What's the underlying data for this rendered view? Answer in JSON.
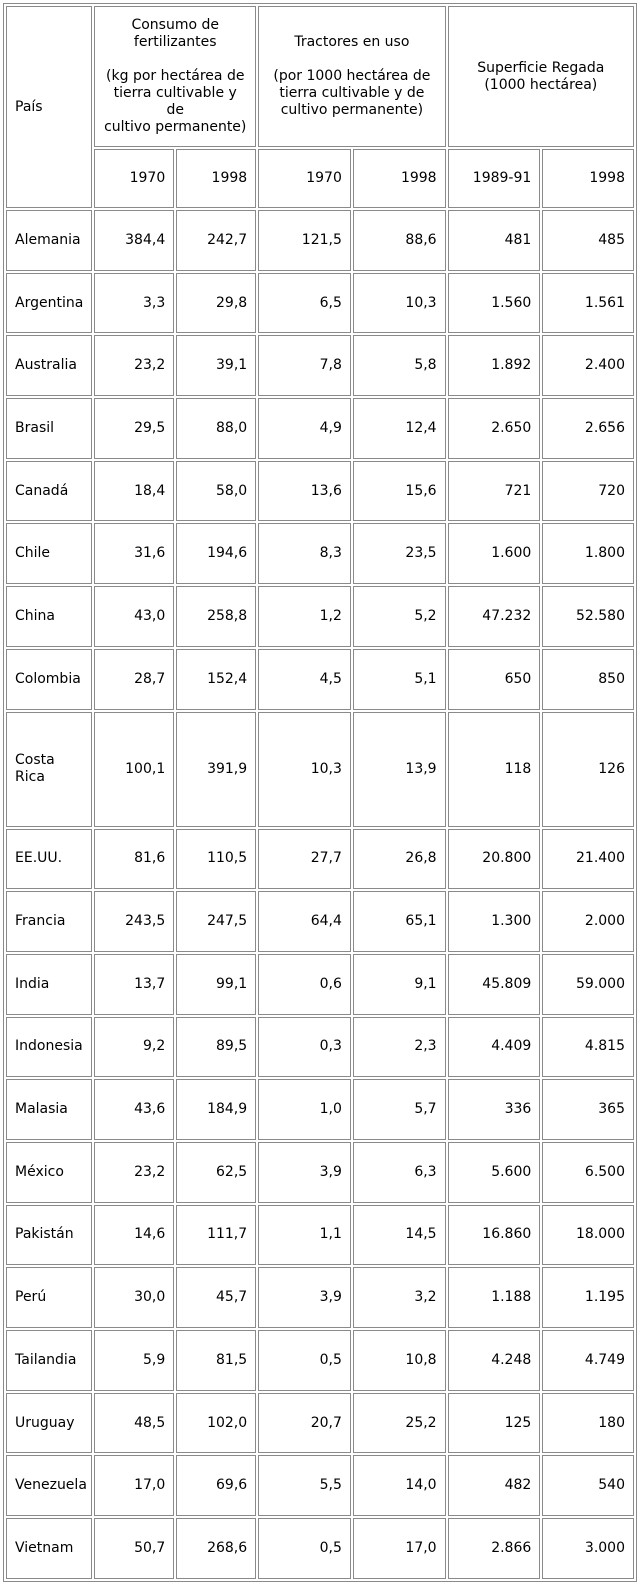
{
  "header": {
    "pais": "País",
    "fertilizer": {
      "line1": "Consumo de",
      "line2": "fertilizantes",
      "line3": "(kg por hectárea de",
      "line4": "tierra cultivable y de",
      "line5": "cultivo permanente)"
    },
    "tractors": {
      "line1": "Tractores en uso",
      "line2": "(por 1000 hectárea de",
      "line3": "tierra cultivable y de",
      "line4": "cultivo permanente)"
    },
    "irrigated": {
      "line1": "Superficie Regada",
      "line2": "(1000 hectárea)"
    },
    "years": [
      "1970",
      "1998",
      "1970",
      "1998",
      "1989-91",
      "1998"
    ]
  },
  "rows": [
    [
      "Alemania",
      "384,4",
      "242,7",
      "121,5",
      "88,6",
      "481",
      "485"
    ],
    [
      "Argentina",
      "3,3",
      "29,8",
      "6,5",
      "10,3",
      "1.560",
      "1.561"
    ],
    [
      "Australia",
      "23,2",
      "39,1",
      "7,8",
      "5,8",
      "1.892",
      "2.400"
    ],
    [
      "Brasil",
      "29,5",
      "88,0",
      "4,9",
      "12,4",
      "2.650",
      "2.656"
    ],
    [
      "Canadá",
      "18,4",
      "58,0",
      "13,6",
      "15,6",
      "721",
      "720"
    ],
    [
      "Chile",
      "31,6",
      "194,6",
      "8,3",
      "23,5",
      "1.600",
      "1.800"
    ],
    [
      "China",
      "43,0",
      "258,8",
      "1,2",
      "5,2",
      "47.232",
      "52.580"
    ],
    [
      "Colombia",
      "28,7",
      "152,4",
      "4,5",
      "5,1",
      "650",
      "850"
    ],
    [
      "Costa Rica",
      "100,1",
      "391,9",
      "10,3",
      "13,9",
      "118",
      "126"
    ],
    [
      "EE.UU.",
      "81,6",
      "110,5",
      "27,7",
      "26,8",
      "20.800",
      "21.400"
    ],
    [
      "Francia",
      "243,5",
      "247,5",
      "64,4",
      "65,1",
      "1.300",
      "2.000"
    ],
    [
      "India",
      "13,7",
      "99,1",
      "0,6",
      "9,1",
      "45.809",
      "59.000"
    ],
    [
      "Indonesia",
      "9,2",
      "89,5",
      "0,3",
      "2,3",
      "4.409",
      "4.815"
    ],
    [
      "Malasia",
      "43,6",
      "184,9",
      "1,0",
      "5,7",
      "336",
      "365"
    ],
    [
      "México",
      "23,2",
      "62,5",
      "3,9",
      "6,3",
      "5.600",
      "6.500"
    ],
    [
      "Pakistán",
      "14,6",
      "111,7",
      "1,1",
      "14,5",
      "16.860",
      "18.000"
    ],
    [
      "Perú",
      "30,0",
      "45,7",
      "3,9",
      "3,2",
      "1.188",
      "1.195"
    ],
    [
      "Tailandia",
      "5,9",
      "81,5",
      "0,5",
      "10,8",
      "4.248",
      "4.749"
    ],
    [
      "Uruguay",
      "48,5",
      "102,0",
      "20,7",
      "25,2",
      "125",
      "180"
    ],
    [
      "Venezuela",
      "17,0",
      "69,6",
      "5,5",
      "14,0",
      "482",
      "540"
    ],
    [
      "Vietnam",
      "50,7",
      "268,6",
      "0,5",
      "17,0",
      "2.866",
      "3.000"
    ]
  ]
}
